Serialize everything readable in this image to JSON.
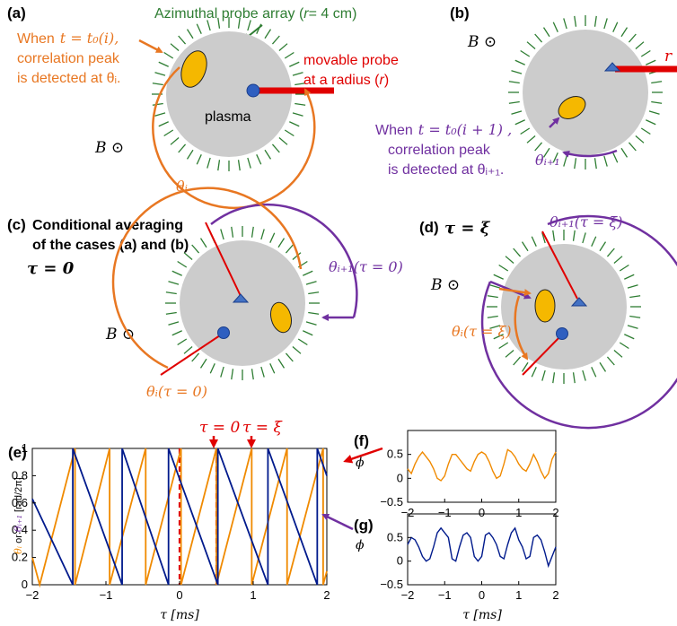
{
  "colors": {
    "orange": "#E87722",
    "purple": "#7030A0",
    "green": "#2E7D32",
    "red": "#E00000",
    "gray": "#CCCCCC",
    "yellow": "#F5B800",
    "blue": "#2F5FC0",
    "navy": "#001A8C",
    "line_orange": "#F08A00"
  },
  "a": {
    "tag": "(a)",
    "array_label": "Azimuthal probe array (",
    "array_r": "r",
    "array_val": "= 4 cm)",
    "when_1": "When",
    "when_eq": "t = t₀(i),",
    "corr": "correlation peak",
    "detected": "is detected at θᵢ.",
    "movable_1": "movable probe",
    "movable_2": "at a radius (",
    "movable_r": "r",
    "movable_3": ")",
    "plasma": "plasma",
    "B": "B ⊙",
    "theta": "θᵢ"
  },
  "b": {
    "tag": "(b)",
    "B": "B ⊙",
    "r": "r",
    "when_1": "When",
    "when_eq": "t = t₀(i + 1) ,",
    "corr": "correlation peak",
    "detected": "is detected at θᵢ₊₁.",
    "theta": "θᵢ₊₁"
  },
  "c": {
    "tag": "(c)",
    "line1": "Conditional averaging",
    "line2": "of the cases (a) and (b)",
    "tau": "τ = 0",
    "B": "B ⊙",
    "theta_top": "θᵢ₊₁(τ = 0)",
    "theta_bot": "θᵢ(τ = 0)"
  },
  "d": {
    "tag": "(d)",
    "tau": "τ = ξ",
    "B": "B ⊙",
    "theta_top": "θᵢ₊₁(τ = ξ)",
    "theta_mid": "θᵢ(τ = ξ)"
  },
  "e": {
    "tag": "(e)",
    "tau0": "τ = 0",
    "tauxi": "τ = ξ",
    "ylabel_a": "θᵢ",
    "ylabel_or": " or ",
    "ylabel_b": "θᵢ₊₁",
    "ylabel_unit": " [rad/2π]",
    "xlabel": "τ [ms]",
    "yticks": [
      "0",
      "0.2",
      "0.4",
      "0.6",
      "0.8",
      "1"
    ],
    "xticks": [
      "−2",
      "−1",
      "0",
      "1",
      "2"
    ]
  },
  "f": {
    "tag": "(f)",
    "ylabel": "ϕ",
    "yticks": [
      "−0.5",
      "0",
      "0.5"
    ],
    "xticks": [
      "−2",
      "−1",
      "0",
      "1",
      "2"
    ]
  },
  "g": {
    "tag": "(g)",
    "ylabel": "ϕ",
    "yticks": [
      "−0.5",
      "0",
      "0.5"
    ],
    "xticks": [
      "−2",
      "−1",
      "0",
      "1",
      "2"
    ],
    "xlabel": "τ [ms]"
  },
  "chart_data": [
    {
      "type": "line",
      "panel": "(e)",
      "xlabel": "τ [ms]",
      "ylabel": "θᵢ or θᵢ₊₁ [rad/2π]",
      "xlim": [
        -2,
        2
      ],
      "ylim": [
        0,
        1
      ],
      "markers": [
        {
          "label": "τ = 0",
          "x": 0
        },
        {
          "label": "τ = ξ",
          "x": 0.5
        }
      ],
      "series": [
        {
          "color": "#F08A00",
          "x": [
            -2,
            -1.9,
            -1.9,
            -1.42,
            -1.42,
            -0.95,
            -0.95,
            -0.46,
            -0.46,
            0.02,
            0.02,
            0.5,
            0.5,
            0.98,
            0.98,
            1.46,
            1.46,
            1.95,
            1.95,
            2
          ],
          "y": [
            0.2,
            0.0,
            0.0,
            1.0,
            0.0,
            1.0,
            0.0,
            1.0,
            0.0,
            1.0,
            0.0,
            1.0,
            0.0,
            1.0,
            0.0,
            1.0,
            0.0,
            1.0,
            0.0,
            0.1
          ]
        },
        {
          "color": "#001A8C",
          "x": [
            -2,
            -1.45,
            -1.45,
            -0.78,
            -0.78,
            -0.15,
            -0.15,
            0.52,
            0.52,
            1.2,
            1.2,
            1.87,
            1.87,
            2
          ],
          "y": [
            0.63,
            0.0,
            1.0,
            0.0,
            1.0,
            0.0,
            1.0,
            0.0,
            1.0,
            0.0,
            1.0,
            0.0,
            1.0,
            0.8
          ]
        }
      ]
    },
    {
      "type": "line",
      "panel": "(f)",
      "ylabel": "ϕ",
      "xlim": [
        -2,
        2
      ],
      "ylim": [
        -0.5,
        1
      ],
      "series": [
        {
          "color": "#F08A00",
          "x": [
            -2,
            -1.9,
            -1.8,
            -1.7,
            -1.6,
            -1.5,
            -1.4,
            -1.3,
            -1.2,
            -1.1,
            -1.0,
            -0.9,
            -0.8,
            -0.7,
            -0.6,
            -0.5,
            -0.4,
            -0.3,
            -0.2,
            -0.1,
            0.0,
            0.1,
            0.2,
            0.3,
            0.4,
            0.5,
            0.6,
            0.7,
            0.8,
            0.9,
            1.0,
            1.1,
            1.2,
            1.3,
            1.4,
            1.5,
            1.6,
            1.7,
            1.8,
            1.9,
            2.0
          ],
          "y": [
            0.2,
            0.1,
            0.3,
            0.45,
            0.55,
            0.45,
            0.35,
            0.2,
            0.0,
            -0.05,
            0.05,
            0.3,
            0.5,
            0.5,
            0.4,
            0.3,
            0.2,
            0.15,
            0.35,
            0.5,
            0.55,
            0.5,
            0.35,
            0.15,
            0.0,
            0.05,
            0.3,
            0.6,
            0.55,
            0.45,
            0.3,
            0.2,
            0.15,
            0.3,
            0.5,
            0.35,
            0.15,
            0.0,
            0.1,
            0.4,
            0.55
          ]
        }
      ]
    },
    {
      "type": "line",
      "panel": "(g)",
      "ylabel": "ϕ",
      "xlabel": "τ [ms]",
      "xlim": [
        -2,
        2
      ],
      "ylim": [
        -0.5,
        1
      ],
      "series": [
        {
          "color": "#001A8C",
          "x": [
            -2,
            -1.9,
            -1.8,
            -1.7,
            -1.6,
            -1.5,
            -1.4,
            -1.3,
            -1.2,
            -1.1,
            -1.0,
            -0.9,
            -0.8,
            -0.7,
            -0.6,
            -0.5,
            -0.4,
            -0.3,
            -0.2,
            -0.1,
            0.0,
            0.1,
            0.2,
            0.3,
            0.4,
            0.5,
            0.6,
            0.7,
            0.8,
            0.9,
            1.0,
            1.1,
            1.2,
            1.3,
            1.4,
            1.5,
            1.6,
            1.7,
            1.8,
            1.9,
            2.0
          ],
          "y": [
            0.35,
            0.5,
            0.45,
            0.3,
            0.1,
            0.0,
            0.05,
            0.3,
            0.6,
            0.7,
            0.6,
            0.5,
            0.05,
            0.0,
            0.3,
            0.55,
            0.6,
            0.5,
            0.1,
            0.0,
            0.1,
            0.55,
            0.6,
            0.5,
            0.35,
            0.1,
            0.05,
            0.35,
            0.6,
            0.7,
            0.45,
            0.3,
            0.05,
            0.1,
            0.5,
            0.55,
            0.45,
            0.2,
            -0.1,
            0.1,
            0.3
          ]
        }
      ]
    }
  ]
}
